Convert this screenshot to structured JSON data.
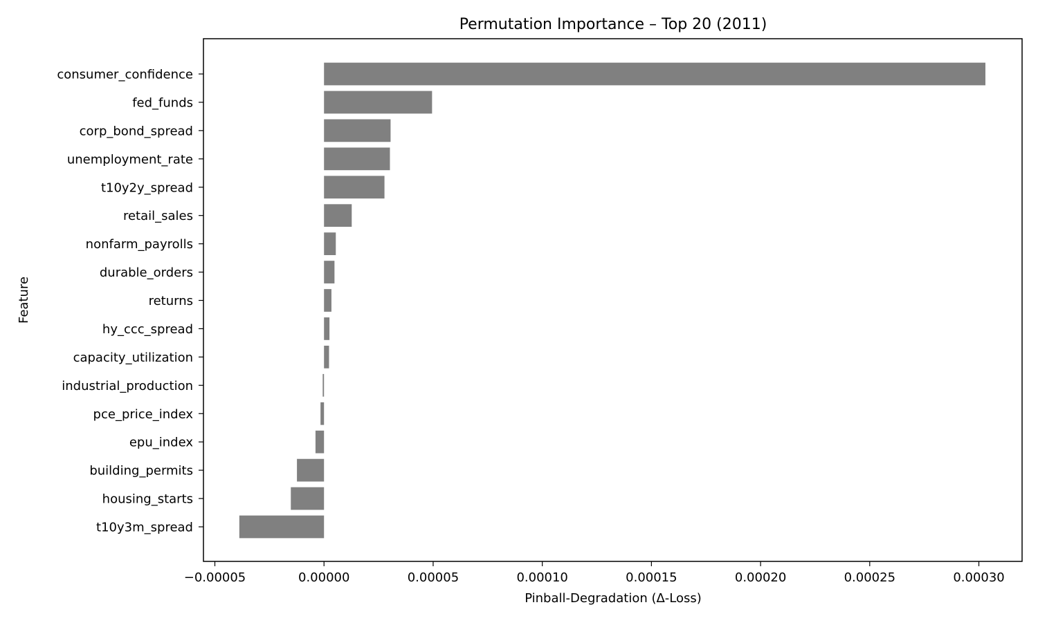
{
  "chart_data": {
    "type": "bar",
    "orientation": "horizontal",
    "title": "Permutation Importance – Top 20 (2011)",
    "xlabel": "Pinball-Degradation (Δ-Loss)",
    "ylabel": "Feature",
    "xlim": [
      -5e-05,
      0.000322
    ],
    "xticks": [
      -5e-05,
      0.0,
      5e-05,
      0.0001,
      0.00015,
      0.0002,
      0.00025,
      0.0003
    ],
    "xtick_labels": [
      "−0.00005",
      "0.00000",
      "0.00005",
      "0.00010",
      "0.00015",
      "0.00020",
      "0.00025",
      "0.00030"
    ],
    "categories": [
      "consumer_confidence",
      "fed_funds",
      "corp_bond_spread",
      "unemployment_rate",
      "t10y2y_spread",
      "retail_sales",
      "nonfarm_payrolls",
      "durable_orders",
      "returns",
      "hy_ccc_spread",
      "capacity_utilization",
      "industrial_production",
      "pce_price_index",
      "epu_index",
      "building_permits",
      "housing_starts",
      "t10y3m_spread"
    ],
    "values": [
      0.000303,
      4.95e-05,
      3.05e-05,
      3.02e-05,
      2.77e-05,
      1.27e-05,
      5.4e-06,
      4.8e-06,
      3.4e-06,
      2.5e-06,
      2.3e-06,
      -6e-07,
      -1.6e-06,
      -3.9e-06,
      -1.24e-05,
      -1.52e-05,
      -3.88e-05
    ],
    "bar_color": "#808080",
    "grid": false,
    "legend": "none"
  }
}
